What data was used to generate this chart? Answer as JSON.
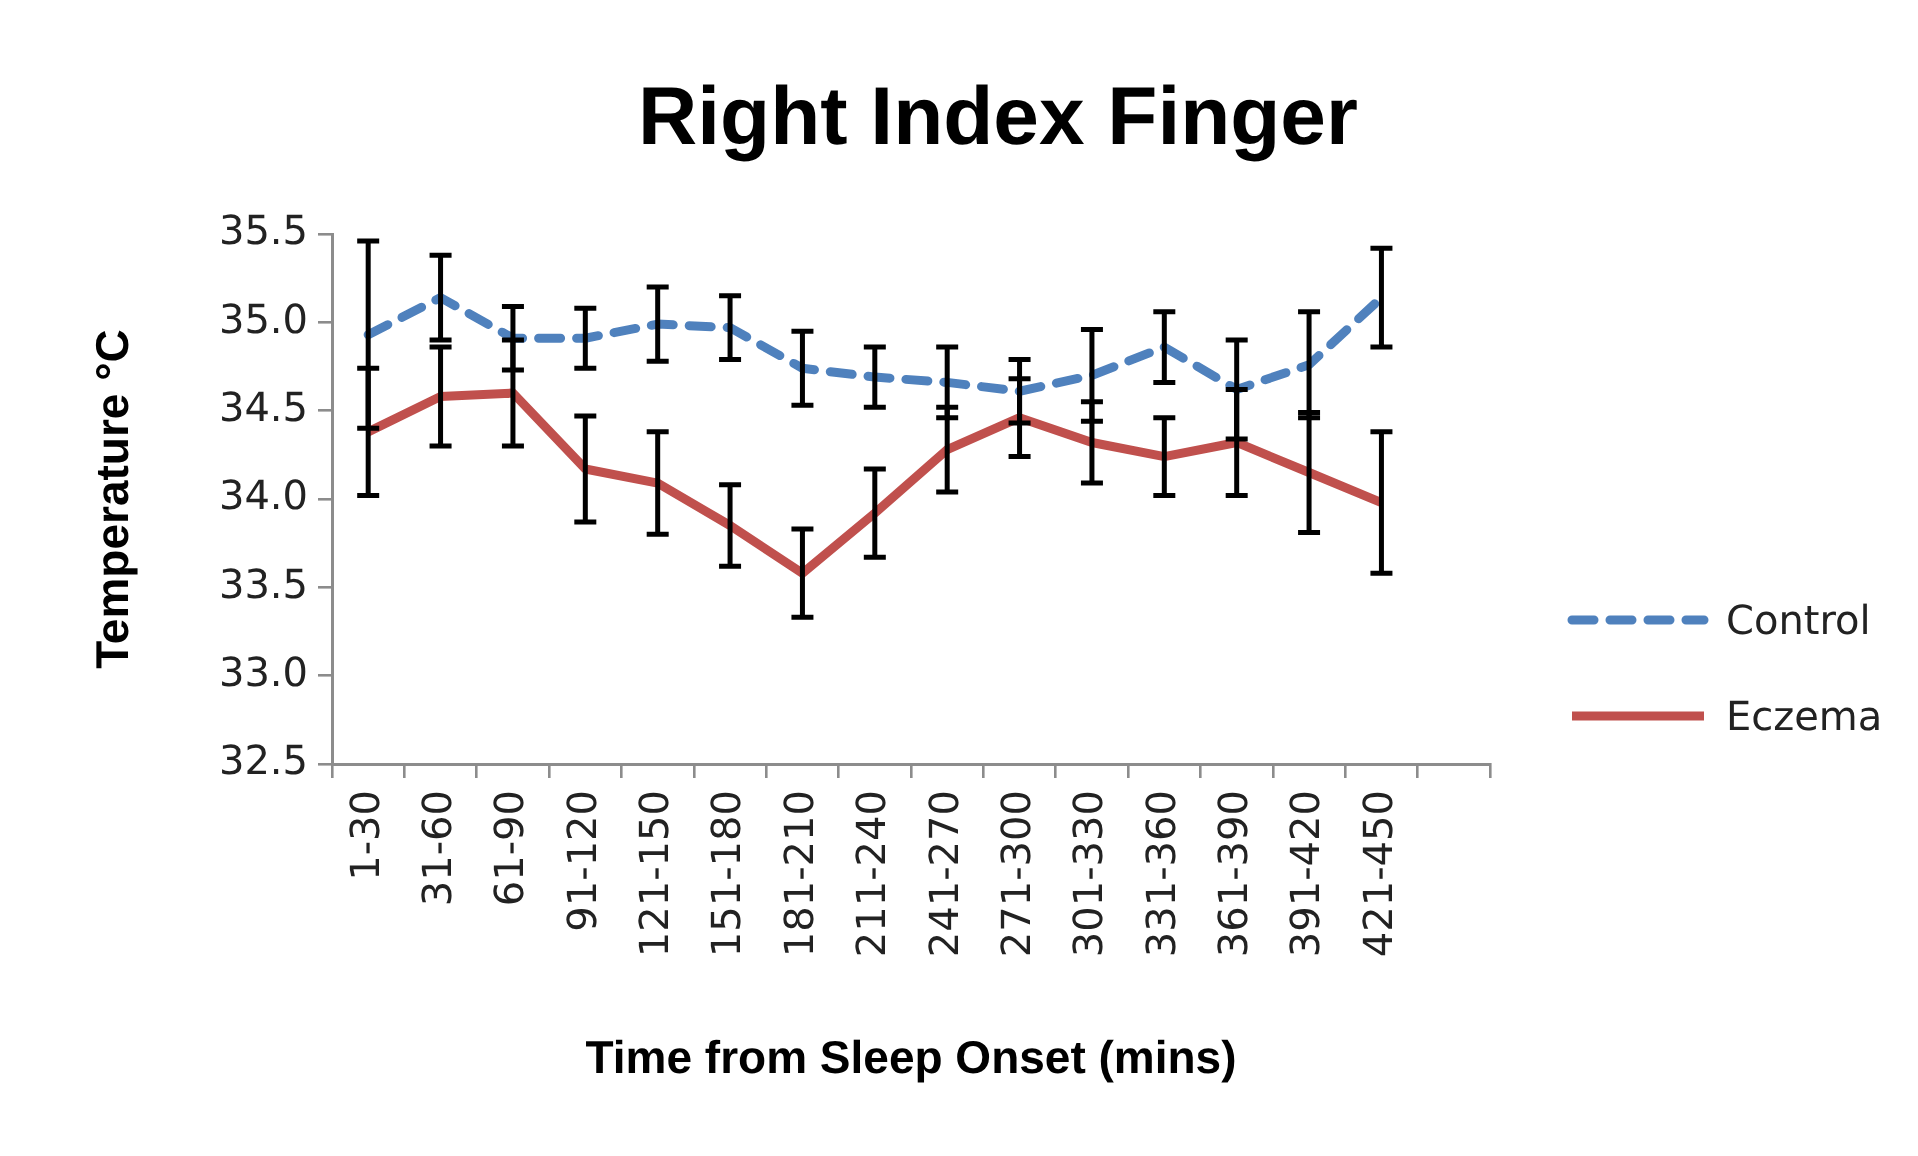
{
  "chart_data": {
    "type": "line",
    "title": "Right Index Finger",
    "xlabel": "Time from Sleep Onset (mins)",
    "ylabel": "Temperature °C",
    "categories": [
      "1-30",
      "31-60",
      "61-90",
      "91-120",
      "121-150",
      "151-180",
      "181-210",
      "211-240",
      "241-270",
      "271-300",
      "301-330",
      "331-360",
      "361-390",
      "391-420",
      "421-450",
      null
    ],
    "series": [
      {
        "name": "Control",
        "color": "#4f81bd",
        "line_style": "dashed",
        "values": [
          34.93,
          35.14,
          34.91,
          34.91,
          34.99,
          34.97,
          34.74,
          34.69,
          34.66,
          34.61,
          34.7,
          34.86,
          34.62,
          34.76,
          35.14,
          null
        ],
        "errors": [
          0.53,
          0.24,
          0.18,
          0.17,
          0.21,
          0.18,
          0.21,
          0.17,
          0.2,
          0.18,
          0.26,
          0.2,
          0.28,
          0.3,
          0.28,
          null
        ]
      },
      {
        "name": "Eczema",
        "color": "#c0504d",
        "line_style": "solid",
        "values": [
          34.38,
          34.58,
          34.6,
          34.17,
          34.09,
          33.85,
          33.58,
          33.92,
          34.28,
          34.46,
          34.32,
          34.24,
          34.32,
          34.15,
          33.98,
          null
        ],
        "errors": [
          0.36,
          0.28,
          0.3,
          0.3,
          0.29,
          0.23,
          0.25,
          0.25,
          0.24,
          0.22,
          0.23,
          0.22,
          0.3,
          0.34,
          0.4,
          null
        ]
      }
    ],
    "ylim": [
      32.5,
      35.5
    ],
    "yticks": [
      32.5,
      {
        "value": 33,
        "label": "33.0"
      },
      33.5,
      {
        "value": 34,
        "label": "34.0"
      },
      34.5,
      {
        "value": 35,
        "label": "35.0"
      },
      35.5
    ],
    "grid": false,
    "legend": "right",
    "marker": "none"
  }
}
